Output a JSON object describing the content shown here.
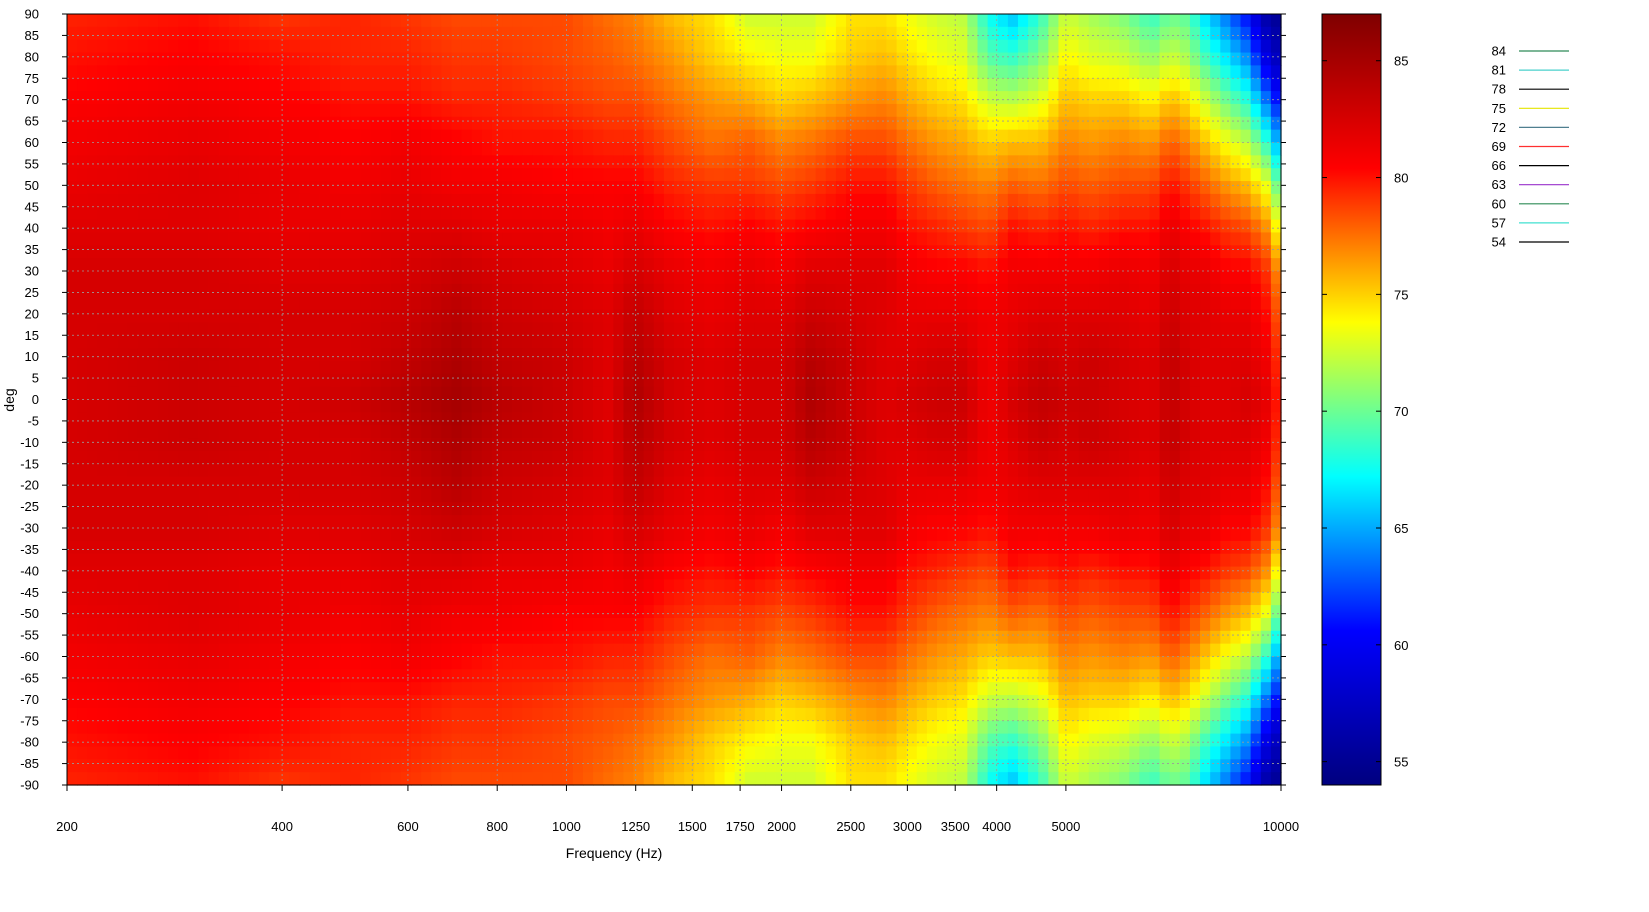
{
  "chart_data": {
    "type": "heatmap",
    "title": "",
    "xlabel": "Frequency (Hz)",
    "ylabel": "deg",
    "x_scale": "log",
    "xlim": [
      200,
      10000
    ],
    "ylim": [
      -90,
      90
    ],
    "x_ticks": [
      200,
      400,
      600,
      800,
      1000,
      1250,
      1500,
      1750,
      2000,
      2500,
      3000,
      3500,
      4000,
      5000,
      10000
    ],
    "x_tick_labels": [
      "200",
      "400",
      "600",
      "800",
      "1000",
      "1250",
      "1500",
      "1750",
      "2000",
      "2500",
      "3000",
      "3500",
      "4000",
      "5000",
      "10000"
    ],
    "y_ticks": [
      90,
      85,
      80,
      75,
      70,
      65,
      60,
      55,
      50,
      45,
      40,
      35,
      30,
      25,
      20,
      15,
      10,
      5,
      0,
      -5,
      -10,
      -15,
      -20,
      -25,
      -30,
      -35,
      -40,
      -45,
      -50,
      -55,
      -60,
      -65,
      -70,
      -75,
      -80,
      -85,
      -90
    ],
    "y_tick_labels": [
      "90",
      "85",
      "80",
      "75",
      "70",
      "65",
      "60",
      "55",
      "50",
      "45",
      "40",
      "35",
      "30",
      "25",
      "20",
      "15",
      "10",
      "5",
      "0",
      "-5",
      "-10",
      "-15",
      "-20",
      "-25",
      "-30",
      "-35",
      "-40",
      "-45",
      "-50",
      "-55",
      "-60",
      "-65",
      "-70",
      "-75",
      "-80",
      "-85",
      "-90"
    ],
    "grid": true,
    "colorbar": {
      "range": [
        54,
        87
      ],
      "ticks": [
        55,
        60,
        65,
        70,
        75,
        80,
        85
      ],
      "tick_labels": [
        "55",
        "60",
        "65",
        "70",
        "75",
        "80",
        "85"
      ],
      "colormap": [
        "#00007f",
        "#0000ff",
        "#00ffff",
        "#ffff00",
        "#ff0000",
        "#7f0000"
      ]
    },
    "contour_legend": [
      {
        "name": "84",
        "color": "#2e8b57"
      },
      {
        "name": "81",
        "color": "#48d1cc"
      },
      {
        "name": "78",
        "color": "#000000"
      },
      {
        "name": "75",
        "color": "#e5e500"
      },
      {
        "name": "72",
        "color": "#4f7f8f"
      },
      {
        "name": "69",
        "color": "#ff3030"
      },
      {
        "name": "66",
        "color": "#000000"
      },
      {
        "name": "63",
        "color": "#9932cc"
      },
      {
        "name": "60",
        "color": "#2e8b57"
      },
      {
        "name": "57",
        "color": "#40e0d0"
      },
      {
        "name": "54",
        "color": "#000000"
      }
    ],
    "legend_position": "right",
    "levels_sampled": {
      "frequencies_hz": [
        200,
        300,
        400,
        500,
        600,
        700,
        800,
        1000,
        1150,
        1250,
        1400,
        1600,
        1800,
        2000,
        2200,
        2500,
        2800,
        3000,
        3300,
        3600,
        3900,
        4200,
        4600,
        5000,
        5400,
        6000,
        6600,
        7000,
        7400,
        7800,
        8400,
        9000,
        9600,
        10000
      ],
      "angles_deg": [
        -90,
        -80,
        -70,
        -60,
        -50,
        -40,
        -30,
        -20,
        -10,
        0,
        10,
        20,
        30,
        40,
        50,
        60,
        70,
        80,
        90
      ],
      "spl_db": [
        [
          79.5,
          80.0,
          79.0,
          79.5,
          79.0,
          78.5,
          78.5,
          78.5,
          77.5,
          77.0,
          75.5,
          74.5,
          72.5,
          72.5,
          72.5,
          74.5,
          74.5,
          73.5,
          72.5,
          72.0,
          67.5,
          65.5,
          68.5,
          72.5,
          71.5,
          70.5,
          68.5,
          70.0,
          69.5,
          66.5,
          63.5,
          60.5,
          55.5,
          55.0
        ],
        [
          80.0,
          80.5,
          80.0,
          79.5,
          79.5,
          79.0,
          79.0,
          78.5,
          78.0,
          77.5,
          76.5,
          75.0,
          74.0,
          73.5,
          73.5,
          75.0,
          75.5,
          74.5,
          73.5,
          73.0,
          69.5,
          68.5,
          70.5,
          74.0,
          73.0,
          72.5,
          71.0,
          72.5,
          71.5,
          69.0,
          66.5,
          64.0,
          58.5,
          56.5
        ],
        [
          80.5,
          81.0,
          80.5,
          80.0,
          80.0,
          79.5,
          79.5,
          79.0,
          78.5,
          78.5,
          77.5,
          76.5,
          76.0,
          75.0,
          75.5,
          76.5,
          77.0,
          76.0,
          75.0,
          74.5,
          72.5,
          72.0,
          73.0,
          75.5,
          75.0,
          75.0,
          74.0,
          75.5,
          74.5,
          72.5,
          70.0,
          68.0,
          63.0,
          60.0
        ],
        [
          81.0,
          81.5,
          81.0,
          80.5,
          81.0,
          80.5,
          80.0,
          80.0,
          79.5,
          79.5,
          78.5,
          77.5,
          78.0,
          77.0,
          77.5,
          78.5,
          78.5,
          77.5,
          76.5,
          76.0,
          75.0,
          75.5,
          75.5,
          77.0,
          76.5,
          77.0,
          76.5,
          78.0,
          77.0,
          75.5,
          73.5,
          72.0,
          68.0,
          64.0
        ],
        [
          81.5,
          82.0,
          81.5,
          81.0,
          81.5,
          81.0,
          81.0,
          80.5,
          80.5,
          80.5,
          79.5,
          79.0,
          79.0,
          78.5,
          79.0,
          80.0,
          80.0,
          79.0,
          78.0,
          77.5,
          77.0,
          78.0,
          77.5,
          78.5,
          78.0,
          78.5,
          78.5,
          80.0,
          79.0,
          78.0,
          76.5,
          75.5,
          73.0,
          68.5
        ],
        [
          82.0,
          82.0,
          81.5,
          81.5,
          82.0,
          82.0,
          81.5,
          81.5,
          81.0,
          81.5,
          80.5,
          80.0,
          80.5,
          80.0,
          80.5,
          81.0,
          81.0,
          80.0,
          79.5,
          79.0,
          78.5,
          80.0,
          79.5,
          80.0,
          79.5,
          80.0,
          80.0,
          81.5,
          80.5,
          80.0,
          79.0,
          78.5,
          76.5,
          72.5
        ],
        [
          82.5,
          82.5,
          82.0,
          82.0,
          82.5,
          83.0,
          82.5,
          82.0,
          81.5,
          82.5,
          81.5,
          81.0,
          81.5,
          81.0,
          82.0,
          82.0,
          82.0,
          81.0,
          80.5,
          80.5,
          80.0,
          81.0,
          81.0,
          81.0,
          81.0,
          81.5,
          81.0,
          82.5,
          81.5,
          81.5,
          80.5,
          80.5,
          79.0,
          76.0
        ],
        [
          82.5,
          82.5,
          82.5,
          82.5,
          83.0,
          84.0,
          83.0,
          82.5,
          82.0,
          83.5,
          82.0,
          81.5,
          82.0,
          82.0,
          83.0,
          82.5,
          82.0,
          81.5,
          81.5,
          81.5,
          81.0,
          81.5,
          82.0,
          82.0,
          82.0,
          82.0,
          81.5,
          83.0,
          82.0,
          82.0,
          81.5,
          81.5,
          80.0,
          77.5
        ],
        [
          82.5,
          83.0,
          82.5,
          82.5,
          83.5,
          84.5,
          83.5,
          83.0,
          82.0,
          84.0,
          82.5,
          82.0,
          82.5,
          82.5,
          84.0,
          83.0,
          82.0,
          82.0,
          82.5,
          82.5,
          81.0,
          82.0,
          83.0,
          82.5,
          83.0,
          82.5,
          82.0,
          83.5,
          82.5,
          82.0,
          82.0,
          82.0,
          81.0,
          78.5
        ],
        [
          82.5,
          83.0,
          82.5,
          83.0,
          84.0,
          85.0,
          84.0,
          83.0,
          82.0,
          84.5,
          82.5,
          82.0,
          82.5,
          82.5,
          84.5,
          83.0,
          82.0,
          82.5,
          83.0,
          83.0,
          81.0,
          82.5,
          83.5,
          83.0,
          83.0,
          82.5,
          82.0,
          83.5,
          82.5,
          82.0,
          82.0,
          82.5,
          81.5,
          79.0
        ],
        [
          82.5,
          83.0,
          82.5,
          82.5,
          83.5,
          84.5,
          83.5,
          83.0,
          82.0,
          84.0,
          82.5,
          82.0,
          82.5,
          82.5,
          84.0,
          83.0,
          82.0,
          82.0,
          82.5,
          82.5,
          81.0,
          82.0,
          83.0,
          82.5,
          83.0,
          82.5,
          82.0,
          83.5,
          82.5,
          82.0,
          82.0,
          82.0,
          81.0,
          78.5
        ],
        [
          82.5,
          82.5,
          82.5,
          82.5,
          83.0,
          84.0,
          83.0,
          82.5,
          82.0,
          83.5,
          82.0,
          81.5,
          82.0,
          82.0,
          83.0,
          82.5,
          82.0,
          81.5,
          81.5,
          81.5,
          81.0,
          81.5,
          82.0,
          82.0,
          82.0,
          82.0,
          81.5,
          83.0,
          82.0,
          82.0,
          81.5,
          81.5,
          80.0,
          77.5
        ],
        [
          82.5,
          82.5,
          82.0,
          82.0,
          82.5,
          83.0,
          82.5,
          82.0,
          81.5,
          82.5,
          81.5,
          81.0,
          81.5,
          81.0,
          82.0,
          82.0,
          82.0,
          81.0,
          80.5,
          80.5,
          80.0,
          81.0,
          81.0,
          81.0,
          81.0,
          81.5,
          81.0,
          82.5,
          81.5,
          81.5,
          80.5,
          80.5,
          79.0,
          76.0
        ],
        [
          82.0,
          82.0,
          81.5,
          81.5,
          82.0,
          82.0,
          81.5,
          81.5,
          81.0,
          81.5,
          80.5,
          80.0,
          80.5,
          80.0,
          80.5,
          81.0,
          81.0,
          80.0,
          79.5,
          79.0,
          78.5,
          80.0,
          79.5,
          80.0,
          79.5,
          80.0,
          80.0,
          81.5,
          80.5,
          80.0,
          79.0,
          78.5,
          76.5,
          72.5
        ],
        [
          81.5,
          82.0,
          81.5,
          81.0,
          81.5,
          81.0,
          81.0,
          80.5,
          80.5,
          80.5,
          79.5,
          79.0,
          79.0,
          78.5,
          79.0,
          80.0,
          80.0,
          79.0,
          78.0,
          77.5,
          77.0,
          78.0,
          77.5,
          78.5,
          78.0,
          78.5,
          78.5,
          80.0,
          79.0,
          78.0,
          76.5,
          75.5,
          73.0,
          68.5
        ],
        [
          81.0,
          81.5,
          81.0,
          80.5,
          81.0,
          80.5,
          80.0,
          80.0,
          79.5,
          79.5,
          78.5,
          77.5,
          78.0,
          77.0,
          77.5,
          78.5,
          78.5,
          77.5,
          76.5,
          76.0,
          75.0,
          75.5,
          75.5,
          77.0,
          76.5,
          77.0,
          76.5,
          78.0,
          77.0,
          75.5,
          73.5,
          72.0,
          68.0,
          64.0
        ],
        [
          80.5,
          81.0,
          80.5,
          80.0,
          80.0,
          79.5,
          79.5,
          79.0,
          78.5,
          78.5,
          77.5,
          76.5,
          76.0,
          75.0,
          75.5,
          76.5,
          77.0,
          76.0,
          75.0,
          74.5,
          72.5,
          72.0,
          73.0,
          75.5,
          75.0,
          75.0,
          74.0,
          75.5,
          74.5,
          72.5,
          70.0,
          68.0,
          63.0,
          60.0
        ],
        [
          80.0,
          80.5,
          80.0,
          79.5,
          79.5,
          79.0,
          79.0,
          78.5,
          78.0,
          77.5,
          76.5,
          75.0,
          74.0,
          73.5,
          73.5,
          75.0,
          75.5,
          74.5,
          73.5,
          73.0,
          69.5,
          68.5,
          70.5,
          74.0,
          73.0,
          72.5,
          71.0,
          72.5,
          71.5,
          69.0,
          66.5,
          64.0,
          58.5,
          56.5
        ],
        [
          79.5,
          80.0,
          79.0,
          79.5,
          79.0,
          78.5,
          78.5,
          78.5,
          77.5,
          77.0,
          75.5,
          74.5,
          72.5,
          72.5,
          72.5,
          74.5,
          74.5,
          73.5,
          72.5,
          72.0,
          67.5,
          65.5,
          68.5,
          72.5,
          71.5,
          70.5,
          68.5,
          70.0,
          69.5,
          66.5,
          63.5,
          60.5,
          55.5,
          55.0
        ]
      ]
    }
  }
}
